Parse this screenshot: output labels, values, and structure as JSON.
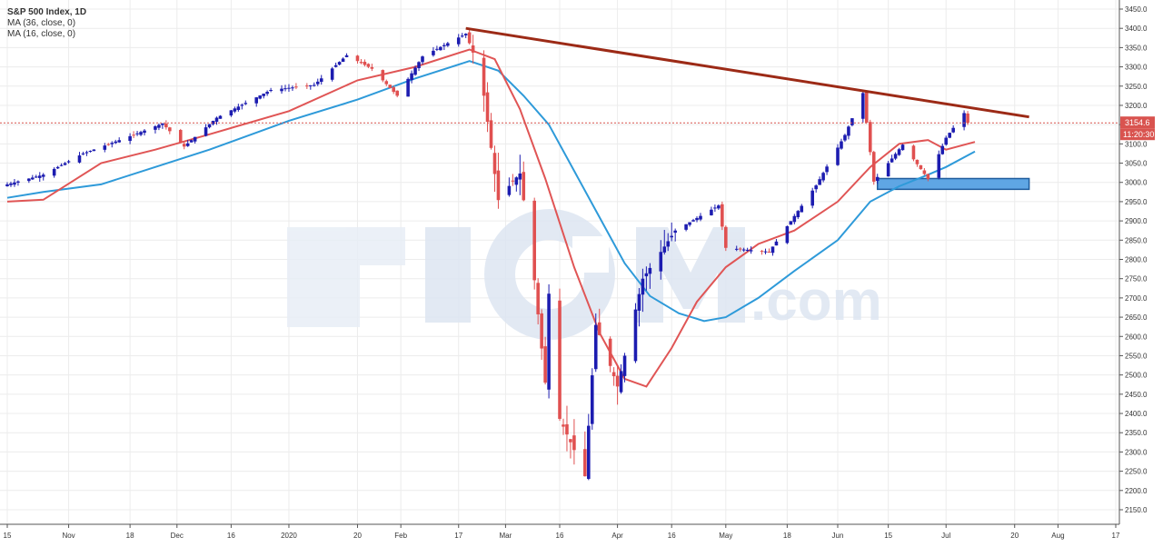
{
  "legend": {
    "title": "S&P 500 Index, 1D",
    "ma1": "MA (36, close, 0)",
    "ma2": "MA (16, close, 0)"
  },
  "price_tag": {
    "value": "3154.6",
    "timer": "11:20:30"
  },
  "watermark": {
    "main": "ICM",
    "suffix": ".com"
  },
  "colors": {
    "up": "#1c1cb0",
    "down": "#e05050",
    "ma_fast": "#e05555",
    "ma_slow": "#2e9ad9",
    "trendline": "#9c2a16",
    "support_fill": "#5fa6e4",
    "support_stroke": "#1f5c9c",
    "price_line": "#d9534f",
    "grid": "#ececec"
  },
  "chart_data": {
    "type": "candlestick",
    "title": "S&P 500 Index, 1D",
    "ylim": [
      2130,
      3470
    ],
    "xlim": [
      "2019-10-15",
      "2020-08-17"
    ],
    "ticks_y": [
      2150,
      2200,
      2250,
      2300,
      2350,
      2400,
      2450,
      2500,
      2550,
      2600,
      2650,
      2700,
      2750,
      2800,
      2850,
      2900,
      2950,
      3000,
      3050,
      3100,
      3150,
      3200,
      3250,
      3300,
      3350,
      3400,
      3450
    ],
    "ticks_x": [
      {
        "date": "2019-10-15",
        "label": "15"
      },
      {
        "date": "2019-11-01",
        "label": "Nov"
      },
      {
        "date": "2019-11-18",
        "label": "18"
      },
      {
        "date": "2019-12-01",
        "label": "Dec"
      },
      {
        "date": "2019-12-16",
        "label": "16"
      },
      {
        "date": "2020-01-01",
        "label": "2020"
      },
      {
        "date": "2020-01-20",
        "label": "20"
      },
      {
        "date": "2020-02-01",
        "label": "Feb"
      },
      {
        "date": "2020-02-17",
        "label": "17"
      },
      {
        "date": "2020-03-01",
        "label": "Mar"
      },
      {
        "date": "2020-03-16",
        "label": "16"
      },
      {
        "date": "2020-04-01",
        "label": "Apr"
      },
      {
        "date": "2020-04-16",
        "label": "16"
      },
      {
        "date": "2020-05-01",
        "label": "May"
      },
      {
        "date": "2020-05-18",
        "label": "18"
      },
      {
        "date": "2020-06-01",
        "label": "Jun"
      },
      {
        "date": "2020-06-15",
        "label": "15"
      },
      {
        "date": "2020-07-01",
        "label": "Jul"
      },
      {
        "date": "2020-07-20",
        "label": "20"
      },
      {
        "date": "2020-08-01",
        "label": "Aug"
      },
      {
        "date": "2020-08-17",
        "label": "17"
      }
    ],
    "last_price": 3154.6,
    "anchors": [
      {
        "date": "2019-10-15",
        "close": 2995
      },
      {
        "date": "2019-10-25",
        "close": 3020
      },
      {
        "date": "2019-11-05",
        "close": 3075
      },
      {
        "date": "2019-11-18",
        "close": 3120
      },
      {
        "date": "2019-11-27",
        "close": 3153
      },
      {
        "date": "2019-12-03",
        "close": 3093
      },
      {
        "date": "2019-12-12",
        "close": 3168
      },
      {
        "date": "2019-12-27",
        "close": 3240
      },
      {
        "date": "2020-01-08",
        "close": 3253
      },
      {
        "date": "2020-01-17",
        "close": 3330
      },
      {
        "date": "2020-01-24",
        "close": 3295
      },
      {
        "date": "2020-01-31",
        "close": 3225
      },
      {
        "date": "2020-02-07",
        "close": 3327
      },
      {
        "date": "2020-02-19",
        "close": 3386
      },
      {
        "date": "2020-02-21",
        "close": 3337
      },
      {
        "date": "2020-02-24",
        "close": 3225
      },
      {
        "date": "2020-02-28",
        "close": 2954
      },
      {
        "date": "2020-03-03",
        "close": 3003
      },
      {
        "date": "2020-03-05",
        "close": 3023
      },
      {
        "date": "2020-03-09",
        "close": 2746
      },
      {
        "date": "2020-03-12",
        "close": 2480
      },
      {
        "date": "2020-03-13",
        "close": 2711
      },
      {
        "date": "2020-03-16",
        "close": 2386
      },
      {
        "date": "2020-03-20",
        "close": 2305
      },
      {
        "date": "2020-03-23",
        "close": 2237
      },
      {
        "date": "2020-03-26",
        "close": 2630
      },
      {
        "date": "2020-04-01",
        "close": 2470
      },
      {
        "date": "2020-04-08",
        "close": 2750
      },
      {
        "date": "2020-04-17",
        "close": 2875
      },
      {
        "date": "2020-04-29",
        "close": 2940
      },
      {
        "date": "2020-05-01",
        "close": 2830
      },
      {
        "date": "2020-05-13",
        "close": 2820
      },
      {
        "date": "2020-05-26",
        "close": 2992
      },
      {
        "date": "2020-06-03",
        "close": 3123
      },
      {
        "date": "2020-06-08",
        "close": 3232
      },
      {
        "date": "2020-06-11",
        "close": 3002
      },
      {
        "date": "2020-06-19",
        "close": 3098
      },
      {
        "date": "2020-06-26",
        "close": 3009
      },
      {
        "date": "2020-07-01",
        "close": 3116
      },
      {
        "date": "2020-07-06",
        "close": 3180
      },
      {
        "date": "2020-07-07",
        "close": 3154.6
      }
    ],
    "ma_fast": {
      "name": "MA (16, close, 0)",
      "points": [
        {
          "date": "2019-10-15",
          "value": 2950
        },
        {
          "date": "2019-10-25",
          "value": 2955
        },
        {
          "date": "2019-11-10",
          "value": 3050
        },
        {
          "date": "2019-11-25",
          "value": 3085
        },
        {
          "date": "2019-12-10",
          "value": 3125
        },
        {
          "date": "2020-01-01",
          "value": 3185
        },
        {
          "date": "2020-01-20",
          "value": 3265
        },
        {
          "date": "2020-02-05",
          "value": 3300
        },
        {
          "date": "2020-02-20",
          "value": 3345
        },
        {
          "date": "2020-02-27",
          "value": 3320
        },
        {
          "date": "2020-03-05",
          "value": 3190
        },
        {
          "date": "2020-03-12",
          "value": 3010
        },
        {
          "date": "2020-03-20",
          "value": 2780
        },
        {
          "date": "2020-03-27",
          "value": 2610
        },
        {
          "date": "2020-04-03",
          "value": 2490
        },
        {
          "date": "2020-04-09",
          "value": 2470
        },
        {
          "date": "2020-04-16",
          "value": 2570
        },
        {
          "date": "2020-04-23",
          "value": 2690
        },
        {
          "date": "2020-05-01",
          "value": 2780
        },
        {
          "date": "2020-05-10",
          "value": 2840
        },
        {
          "date": "2020-05-20",
          "value": 2875
        },
        {
          "date": "2020-06-01",
          "value": 2950
        },
        {
          "date": "2020-06-10",
          "value": 3040
        },
        {
          "date": "2020-06-18",
          "value": 3100
        },
        {
          "date": "2020-06-26",
          "value": 3110
        },
        {
          "date": "2020-07-01",
          "value": 3085
        },
        {
          "date": "2020-07-09",
          "value": 3105
        }
      ]
    },
    "ma_slow": {
      "name": "MA (36, close, 0)",
      "points": [
        {
          "date": "2019-10-15",
          "value": 2960
        },
        {
          "date": "2019-10-25",
          "value": 2975
        },
        {
          "date": "2019-11-10",
          "value": 2995
        },
        {
          "date": "2019-11-25",
          "value": 3040
        },
        {
          "date": "2019-12-10",
          "value": 3085
        },
        {
          "date": "2020-01-01",
          "value": 3160
        },
        {
          "date": "2020-01-20",
          "value": 3215
        },
        {
          "date": "2020-02-05",
          "value": 3270
        },
        {
          "date": "2020-02-20",
          "value": 3315
        },
        {
          "date": "2020-02-28",
          "value": 3290
        },
        {
          "date": "2020-03-06",
          "value": 3225
        },
        {
          "date": "2020-03-13",
          "value": 3150
        },
        {
          "date": "2020-03-20",
          "value": 3030
        },
        {
          "date": "2020-03-27",
          "value": 2910
        },
        {
          "date": "2020-04-03",
          "value": 2790
        },
        {
          "date": "2020-04-10",
          "value": 2705
        },
        {
          "date": "2020-04-18",
          "value": 2660
        },
        {
          "date": "2020-04-25",
          "value": 2640
        },
        {
          "date": "2020-05-01",
          "value": 2650
        },
        {
          "date": "2020-05-10",
          "value": 2700
        },
        {
          "date": "2020-05-20",
          "value": 2770
        },
        {
          "date": "2020-06-01",
          "value": 2850
        },
        {
          "date": "2020-06-10",
          "value": 2950
        },
        {
          "date": "2020-06-18",
          "value": 2990
        },
        {
          "date": "2020-06-26",
          "value": 3020
        },
        {
          "date": "2020-07-01",
          "value": 3040
        },
        {
          "date": "2020-07-09",
          "value": 3080
        }
      ]
    },
    "trendline": [
      {
        "date": "2020-02-19",
        "value": 3400
      },
      {
        "date": "2020-07-24",
        "value": 3170
      }
    ],
    "support_zone": {
      "from": "2020-06-12",
      "to": "2020-07-24",
      "low": 2982,
      "high": 3010
    }
  }
}
